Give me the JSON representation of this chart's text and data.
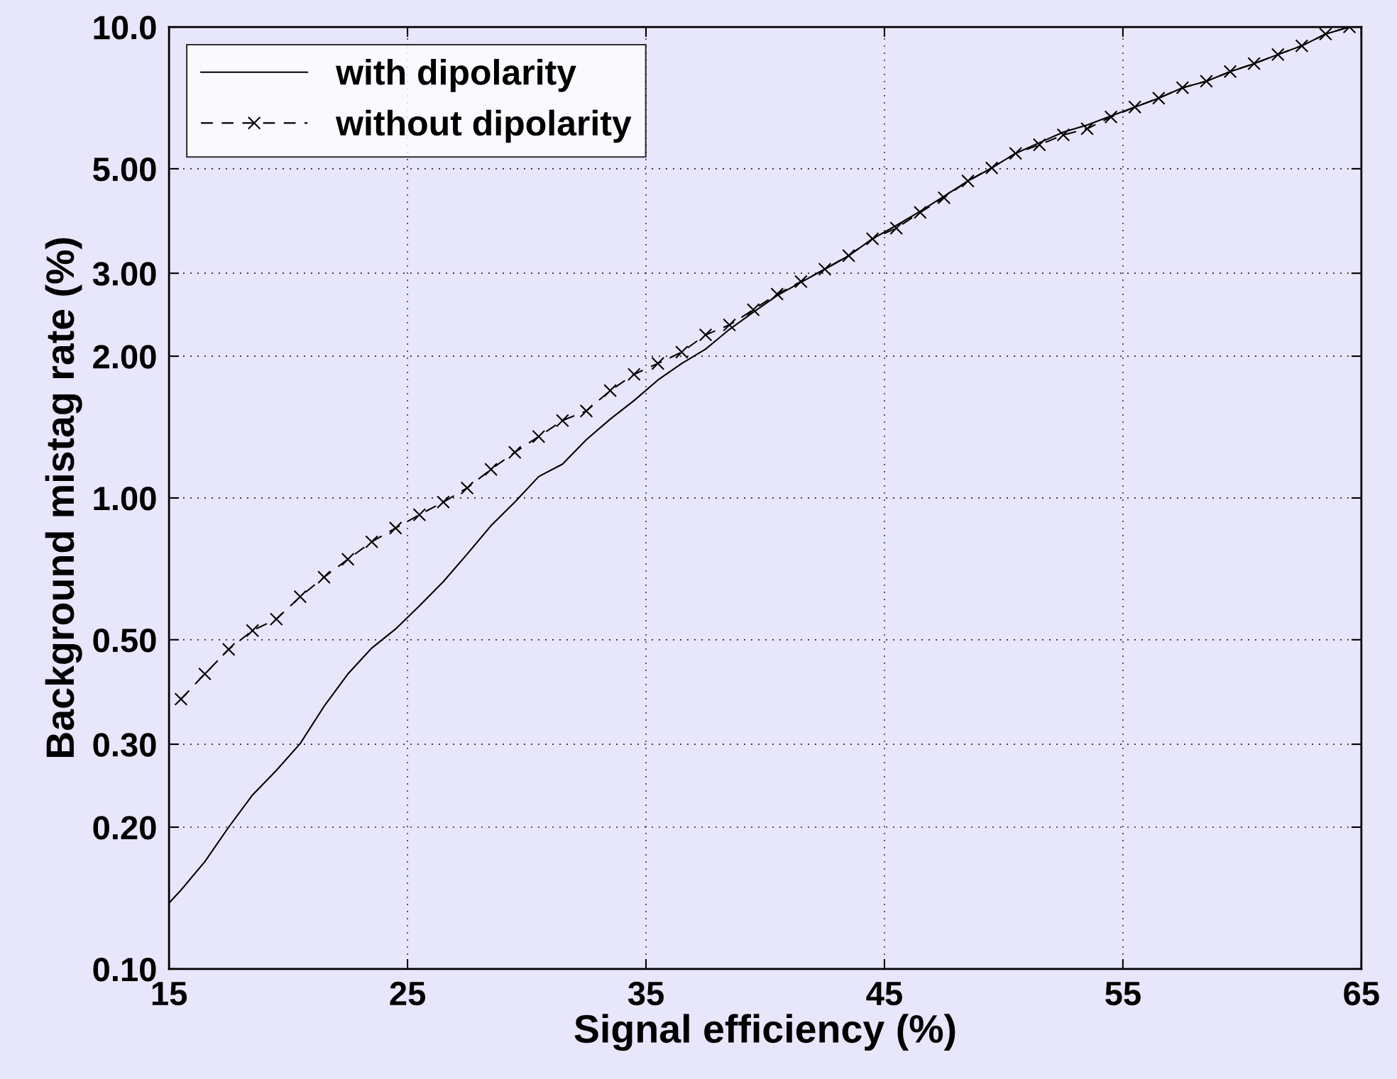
{
  "chart_data": {
    "type": "line",
    "xlabel": "Signal efficiency (%)",
    "ylabel": "Background mistag rate (%)",
    "xlim": [
      15,
      65
    ],
    "ylim": [
      0.1,
      10
    ],
    "log": "y",
    "grid": true,
    "legend": "top left",
    "xticks": [
      15,
      25,
      35,
      45,
      55,
      65
    ],
    "yticks": [
      {
        "value": 0.1,
        "label": "0.10"
      },
      {
        "value": 0.2,
        "label": "0.20"
      },
      {
        "value": 0.3,
        "label": "0.30"
      },
      {
        "value": 0.5,
        "label": "0.50"
      },
      {
        "value": 1,
        "label": "1.00"
      },
      {
        "value": 2,
        "label": "2.00"
      },
      {
        "value": 3,
        "label": "3.00"
      },
      {
        "value": 5,
        "label": "5.00"
      },
      {
        "value": 10,
        "label": "10.0"
      }
    ],
    "series": [
      {
        "name": "with dipolarity",
        "color": "#000000",
        "marker": "none",
        "line_style": "solid",
        "x": [
          15,
          15.5,
          16.5,
          17.5,
          18.5,
          19.5,
          20.5,
          21.5,
          22.5,
          23.5,
          24.5,
          25.5,
          26.5,
          27.5,
          28.5,
          29.5,
          30.5,
          31.5,
          32.5,
          33.5,
          34.5,
          35.5,
          36.5,
          37.5,
          38.5,
          39.5,
          40.5,
          41.5,
          42.5,
          43.5,
          44.5,
          45.5,
          46.5,
          47.5,
          48.5,
          49.5,
          50.5,
          51.5,
          52.5,
          53.5,
          54.5,
          55.5,
          56.5,
          57.5,
          58.5,
          59.5,
          60.5,
          61.5,
          62.5,
          63.5,
          64.5
        ],
        "values": [
          0.138,
          0.147,
          0.169,
          0.2,
          0.234,
          0.264,
          0.301,
          0.361,
          0.423,
          0.48,
          0.527,
          0.59,
          0.664,
          0.76,
          0.873,
          0.98,
          1.11,
          1.18,
          1.33,
          1.47,
          1.61,
          1.78,
          1.93,
          2.07,
          2.28,
          2.48,
          2.69,
          2.87,
          3.06,
          3.27,
          3.55,
          3.79,
          4.06,
          4.37,
          4.71,
          5.02,
          5.39,
          5.68,
          5.98,
          6.19,
          6.47,
          6.76,
          7.06,
          7.43,
          7.67,
          8.04,
          8.36,
          8.74,
          9.12,
          9.66,
          10.0
        ]
      },
      {
        "name": "without dipolarity",
        "color": "#000000",
        "marker": "cross",
        "line_style": "dashed",
        "x": [
          15.5,
          16.5,
          17.5,
          18.5,
          19.5,
          20.5,
          21.5,
          22.5,
          23.5,
          24.5,
          25.5,
          26.5,
          27.5,
          28.5,
          29.5,
          30.5,
          31.5,
          32.5,
          33.5,
          34.5,
          35.5,
          36.5,
          37.5,
          38.5,
          39.5,
          40.5,
          41.5,
          42.5,
          43.5,
          44.5,
          45.5,
          46.5,
          47.5,
          48.5,
          49.5,
          50.5,
          51.5,
          52.5,
          53.5,
          54.5,
          55.5,
          56.5,
          57.5,
          58.5,
          59.5,
          60.5,
          61.5,
          62.5,
          63.5,
          64.5
        ],
        "values": [
          0.374,
          0.423,
          0.477,
          0.523,
          0.553,
          0.617,
          0.679,
          0.741,
          0.807,
          0.863,
          0.921,
          0.98,
          1.05,
          1.15,
          1.25,
          1.35,
          1.46,
          1.53,
          1.69,
          1.83,
          1.93,
          2.04,
          2.22,
          2.33,
          2.51,
          2.71,
          2.88,
          3.06,
          3.27,
          3.55,
          3.74,
          4.04,
          4.34,
          4.71,
          5.02,
          5.39,
          5.62,
          5.9,
          6.08,
          6.44,
          6.76,
          7.06,
          7.43,
          7.67,
          8.04,
          8.36,
          8.74,
          9.12,
          9.66,
          10.0
        ]
      }
    ]
  }
}
